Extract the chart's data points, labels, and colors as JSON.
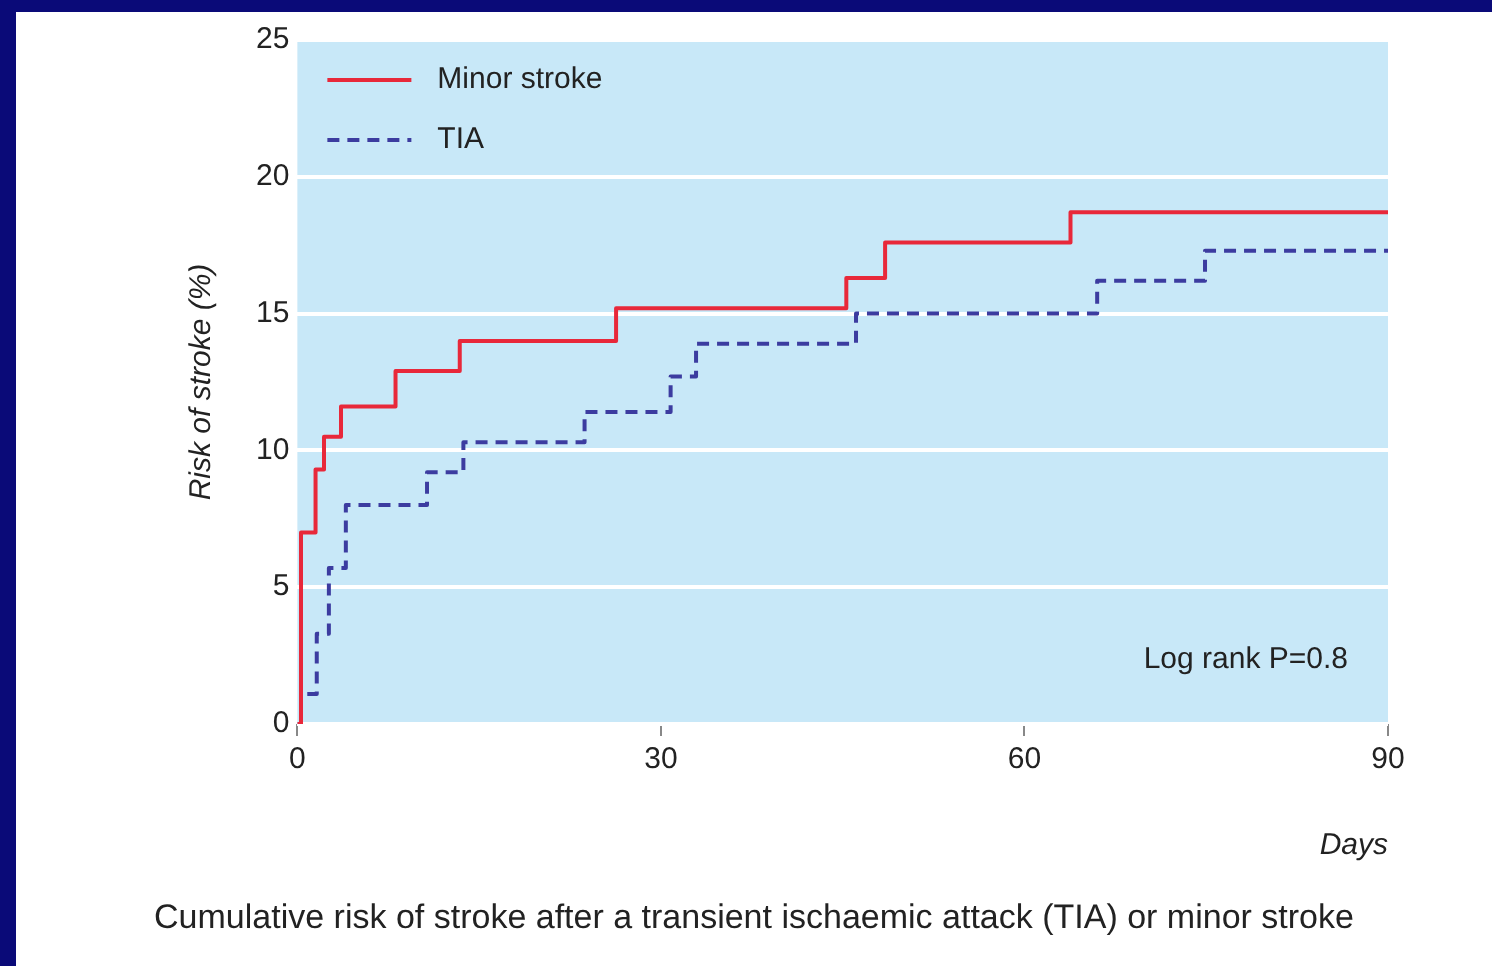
{
  "chart_data": {
    "type": "step",
    "xlabel": "Days",
    "ylabel": "Risk of stroke (%)",
    "annotations": [
      "Log rank P=0.8",
      "Cumulative risk of stroke after a transient ischaemic attack (TIA) or minor stroke"
    ],
    "xlim": [
      0,
      90
    ],
    "xticks": [
      0,
      30,
      60,
      90
    ],
    "ylim": [
      0,
      25
    ],
    "yticks": [
      0,
      5,
      10,
      15,
      20,
      25
    ],
    "grid": "y",
    "legend": "top left",
    "marker": "none",
    "series": [
      {
        "name": "Minor stroke",
        "color": "#e8283a",
        "line_style": "solid",
        "x": [
          0,
          0.3,
          1.5,
          2.2,
          3.6,
          8.1,
          13.4,
          26.3,
          45.3,
          48.5,
          63.8,
          90
        ],
        "values": [
          0,
          7.0,
          9.3,
          10.5,
          11.6,
          12.9,
          14.0,
          15.2,
          16.3,
          17.6,
          18.7,
          18.7
        ]
      },
      {
        "name": "TIA",
        "color": "#3c3ca0",
        "line_style": "dashed",
        "x": [
          0,
          0.3,
          1.6,
          2.6,
          4.0,
          10.7,
          13.7,
          23.7,
          30.8,
          32.9,
          46.1,
          66.0,
          74.9,
          90
        ],
        "values": [
          0,
          1.1,
          3.3,
          5.7,
          8.0,
          9.2,
          10.3,
          11.4,
          12.7,
          13.9,
          15.0,
          16.2,
          17.3,
          17.3
        ]
      }
    ]
  }
}
